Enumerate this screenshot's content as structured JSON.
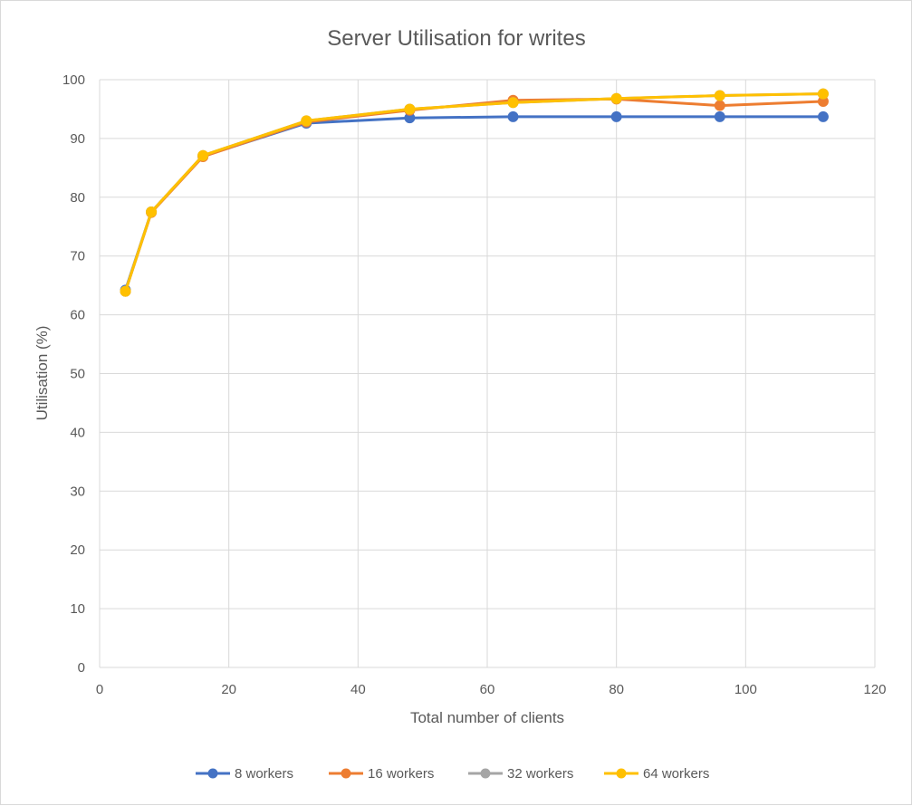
{
  "chart_data": {
    "type": "line",
    "title": "Server  Utilisation for writes",
    "xlabel": "Total number of clients",
    "ylabel": "Utilisation (%)",
    "xlim": [
      0,
      120
    ],
    "ylim": [
      0,
      100
    ],
    "x_ticks": [
      "0",
      "20",
      "40",
      "60",
      "80",
      "100",
      "120"
    ],
    "y_ticks": [
      "0",
      "10",
      "20",
      "30",
      "40",
      "50",
      "60",
      "70",
      "80",
      "90",
      "100"
    ],
    "grid": true,
    "legend_position": "bottom",
    "x": [
      4,
      8,
      16,
      32,
      48,
      64,
      80,
      96,
      112
    ],
    "series": [
      {
        "name": "8 workers",
        "color": "#4472c4",
        "values": [
          64.2,
          77.5,
          87.0,
          92.6,
          93.5,
          93.7,
          93.7,
          93.7,
          93.7
        ]
      },
      {
        "name": "16 workers",
        "color": "#ed7d31",
        "values": [
          64.0,
          77.4,
          86.9,
          92.8,
          94.8,
          96.5,
          96.7,
          95.6,
          96.3
        ]
      },
      {
        "name": "32 workers",
        "color": "#a5a5a5",
        "values": [
          64.0,
          77.5,
          87.1,
          93.0,
          95.0,
          96.1,
          96.8,
          97.3,
          97.6
        ]
      },
      {
        "name": "64 workers",
        "color": "#ffc000",
        "values": [
          64.0,
          77.5,
          87.1,
          93.0,
          95.0,
          96.1,
          96.8,
          97.3,
          97.6
        ]
      }
    ]
  }
}
